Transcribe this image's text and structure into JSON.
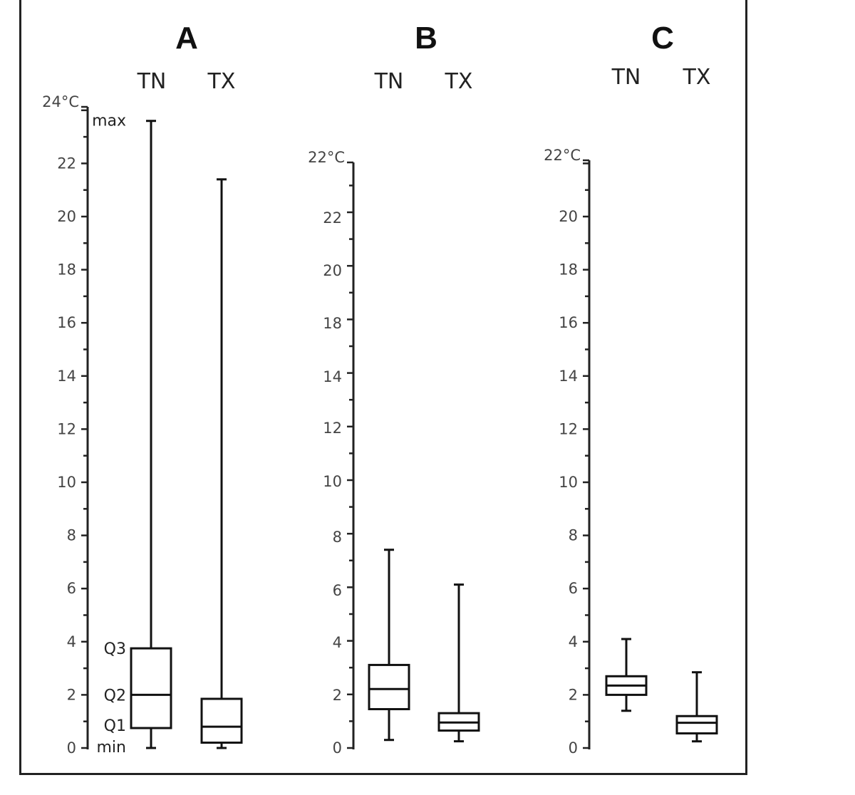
{
  "chart_data": [
    {
      "type": "boxplot",
      "title": "A",
      "top_label": "24°C",
      "y_ticks": [
        0,
        2,
        4,
        6,
        8,
        10,
        12,
        14,
        16,
        18,
        20,
        22
      ],
      "ylim": [
        0,
        24
      ],
      "annotations": [
        "max",
        "Q3",
        "Q2",
        "Q1",
        "min"
      ],
      "series": [
        {
          "name": "TN",
          "min": 0,
          "q1": 0.75,
          "median": 2.0,
          "q3": 3.75,
          "max": 23.6
        },
        {
          "name": "TX",
          "min": 0,
          "q1": 0.2,
          "median": 0.8,
          "q3": 1.85,
          "max": 21.4
        }
      ]
    },
    {
      "type": "boxplot",
      "title": "B",
      "top_label": "22°C",
      "y_ticks": [
        0,
        2,
        4,
        6,
        8,
        10,
        12,
        14,
        18,
        20,
        22
      ],
      "ylim": [
        0,
        22
      ],
      "series": [
        {
          "name": "TN",
          "min": 0.3,
          "q1": 1.45,
          "median": 2.2,
          "q3": 3.1,
          "max": 7.4
        },
        {
          "name": "TX",
          "min": 0.25,
          "q1": 0.65,
          "median": 0.95,
          "q3": 1.3,
          "max": 6.1
        }
      ]
    },
    {
      "type": "boxplot",
      "title": "C",
      "top_label": "22°C",
      "y_ticks": [
        0,
        2,
        4,
        6,
        8,
        10,
        12,
        14,
        16,
        18,
        20
      ],
      "ylim": [
        0,
        22
      ],
      "series": [
        {
          "name": "TN",
          "min": 1.4,
          "q1": 2.0,
          "median": 2.35,
          "q3": 2.7,
          "max": 4.1
        },
        {
          "name": "TX",
          "min": 0.25,
          "q1": 0.55,
          "median": 0.95,
          "q3": 1.2,
          "max": 2.85
        }
      ]
    }
  ]
}
